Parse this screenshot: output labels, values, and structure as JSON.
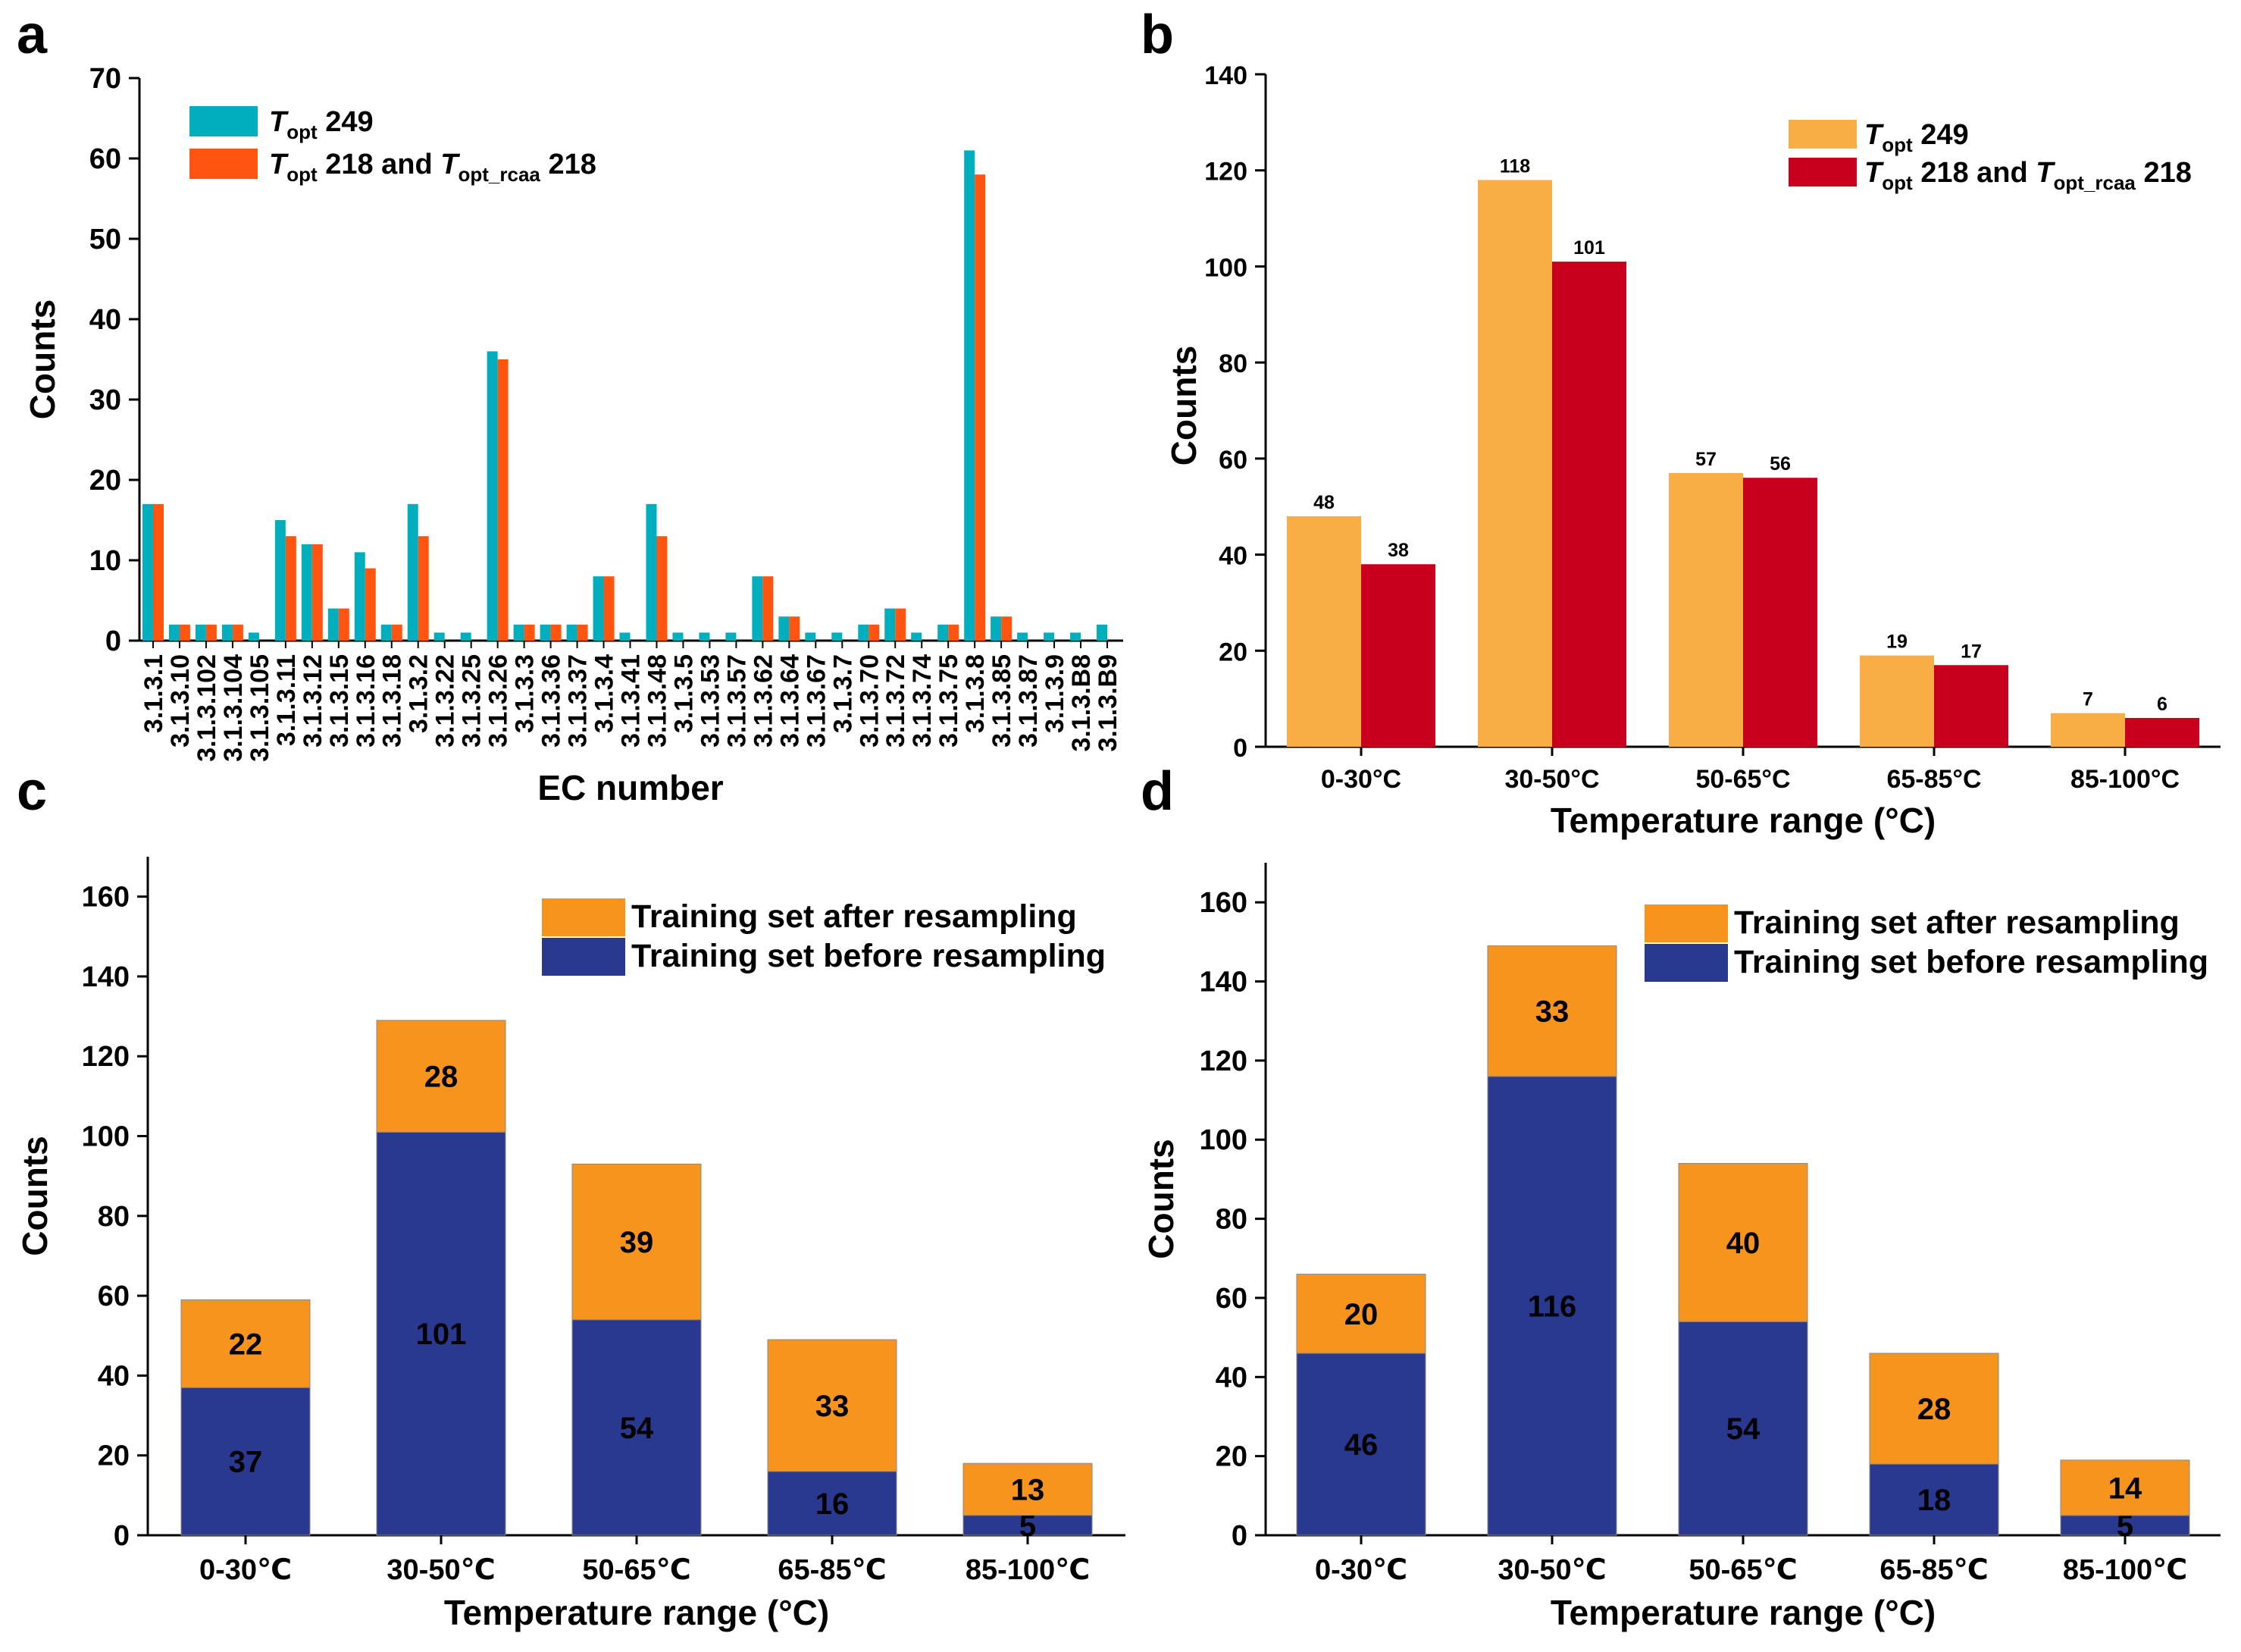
{
  "panels": {
    "a": "a",
    "b": "b",
    "c": "c",
    "d": "d"
  },
  "colors": {
    "teal": "#00AEBD",
    "red_orange": "#FF5511",
    "light_orange": "#F8AE44",
    "crimson": "#C8001E",
    "orange": "#F7941E",
    "navy": "#2A3990"
  },
  "chart_data": [
    {
      "panel": "a",
      "type": "bar",
      "title": "",
      "xlabel": "EC number",
      "ylabel": "Counts",
      "ylim": [
        0,
        70
      ],
      "yticks": [
        0,
        10,
        20,
        30,
        40,
        50,
        60,
        70
      ],
      "legend_position": "top-left",
      "categories": [
        "3.1.3.1",
        "3.1.3.10",
        "3.1.3.102",
        "3.1.3.104",
        "3.1.3.105",
        "3.1.3.11",
        "3.1.3.12",
        "3.1.3.15",
        "3.1.3.16",
        "3.1.3.18",
        "3.1.3.2",
        "3.1.3.22",
        "3.1.3.25",
        "3.1.3.26",
        "3.1.3.3",
        "3.1.3.36",
        "3.1.3.37",
        "3.1.3.4",
        "3.1.3.41",
        "3.1.3.48",
        "3.1.3.5",
        "3.1.3.53",
        "3.1.3.57",
        "3.1.3.62",
        "3.1.3.64",
        "3.1.3.67",
        "3.1.3.7",
        "3.1.3.70",
        "3.1.3.72",
        "3.1.3.74",
        "3.1.3.75",
        "3.1.3.8",
        "3.1.3.85",
        "3.1.3.87",
        "3.1.3.9",
        "3.1.3.B8",
        "3.1.3.B9"
      ],
      "series": [
        {
          "name": "Topt 249",
          "legend": {
            "main": "T",
            "sub": "opt",
            "rest": " 249"
          },
          "color": "#00AEBD",
          "values": [
            17,
            2,
            2,
            2,
            1,
            15,
            12,
            4,
            11,
            2,
            17,
            1,
            1,
            36,
            2,
            2,
            2,
            8,
            1,
            17,
            1,
            1,
            1,
            8,
            3,
            1,
            1,
            2,
            4,
            1,
            2,
            61,
            3,
            1,
            1,
            1,
            2
          ]
        },
        {
          "name": "Topt 218 and Topt_rcaa 218",
          "legend": {
            "main": "T",
            "sub": "opt",
            "mid": " 218 and ",
            "main2": "T",
            "sub2": "opt_rcaa",
            "rest": " 218"
          },
          "color": "#FF5511",
          "values": [
            17,
            2,
            2,
            2,
            0,
            13,
            12,
            4,
            9,
            2,
            13,
            0,
            0,
            35,
            2,
            2,
            2,
            8,
            0,
            13,
            0,
            0,
            0,
            8,
            3,
            0,
            0,
            2,
            4,
            0,
            2,
            58,
            3,
            0,
            0,
            0,
            0
          ]
        }
      ]
    },
    {
      "panel": "b",
      "type": "bar",
      "title": "",
      "xlabel": "Temperature range (°C)",
      "ylabel": "Counts",
      "ylim": [
        0,
        140
      ],
      "yticks": [
        0,
        20,
        40,
        60,
        80,
        100,
        120,
        140
      ],
      "legend_position": "top-right",
      "categories": [
        "0-30°C",
        "30-50°C",
        "50-65°C",
        "65-85°C",
        "85-100°C"
      ],
      "series": [
        {
          "name": "Topt 249",
          "legend": {
            "main": "T",
            "sub": "opt",
            "rest": " 249"
          },
          "color": "#F8AE44",
          "values": [
            48,
            118,
            57,
            19,
            7
          ]
        },
        {
          "name": "Topt 218 and Topt_rcaa 218",
          "legend": {
            "main": "T",
            "sub": "opt",
            "mid": " 218 and ",
            "main2": "T",
            "sub2": "opt_rcaa",
            "rest": " 218"
          },
          "color": "#C8001E",
          "values": [
            38,
            101,
            56,
            17,
            6
          ]
        }
      ]
    },
    {
      "panel": "c",
      "type": "bar",
      "stacked": true,
      "title": "",
      "xlabel": "Temperature range (°C)",
      "ylabel": "Counts",
      "ylim": [
        0,
        170
      ],
      "yticks": [
        0,
        20,
        40,
        60,
        80,
        100,
        120,
        140,
        160
      ],
      "legend_position": "top-right",
      "categories": [
        "0-30℃",
        "30-50℃",
        "50-65℃",
        "65-85℃",
        "85-100℃"
      ],
      "series": [
        {
          "name": "Training set before resampling",
          "color": "#2A3990",
          "values": [
            37,
            101,
            54,
            16,
            5
          ]
        },
        {
          "name": "Training set after resampling",
          "color": "#F7941E",
          "values": [
            22,
            28,
            39,
            33,
            13
          ]
        }
      ]
    },
    {
      "panel": "d",
      "type": "bar",
      "stacked": true,
      "title": "",
      "xlabel": "Temperature range (°C)",
      "ylabel": "Counts",
      "ylim": [
        0,
        170
      ],
      "yticks": [
        0,
        20,
        40,
        60,
        80,
        100,
        120,
        140,
        160
      ],
      "legend_position": "top-right",
      "categories": [
        "0-30℃",
        "30-50℃",
        "50-65℃",
        "65-85℃",
        "85-100℃"
      ],
      "series": [
        {
          "name": "Training set before resampling",
          "color": "#2A3990",
          "values": [
            46,
            116,
            54,
            18,
            5
          ]
        },
        {
          "name": "Training set after resampling",
          "color": "#F7941E",
          "values": [
            20,
            33,
            40,
            28,
            14
          ]
        }
      ]
    }
  ]
}
